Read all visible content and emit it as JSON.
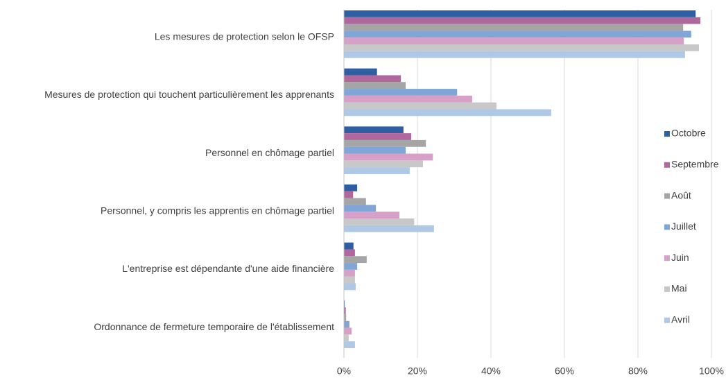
{
  "chart_data": {
    "type": "barh",
    "categories": [
      "Les mesures de protection selon le OFSP",
      "Mesures de protection qui touchent particulièrement les apprenants",
      "Personnel en chômage partiel",
      "Personnel, y compris les apprentis en chômage partiel",
      "L'entreprise est dépendante d'une aide financière",
      "Ordonnance de fermeture temporaire de l'établissement"
    ],
    "series": [
      {
        "name": "Octobre",
        "color": "#2e5fa3",
        "values": [
          95.7,
          9,
          16.2,
          3.6,
          2.6,
          0.2
        ]
      },
      {
        "name": "Septembre",
        "color": "#b0679e",
        "values": [
          97,
          15.5,
          18.3,
          2.5,
          3,
          0.5
        ]
      },
      {
        "name": "Août",
        "color": "#a5a5a5",
        "values": [
          92.3,
          16.8,
          22.3,
          6,
          6.2,
          0.6
        ]
      },
      {
        "name": "Juillet",
        "color": "#7fa6d6",
        "values": [
          94.5,
          30.8,
          16.8,
          8.7,
          3.6,
          1.5
        ]
      },
      {
        "name": "Juin",
        "color": "#d6a0c8",
        "values": [
          92.5,
          34.9,
          24.2,
          15.1,
          3,
          2.1
        ]
      },
      {
        "name": "Mai",
        "color": "#c8c8c8",
        "values": [
          96.6,
          41.5,
          21.5,
          19.1,
          3,
          1.3
        ]
      },
      {
        "name": "Avril",
        "color": "#aec8e6",
        "values": [
          92.8,
          56.4,
          17.9,
          24.5,
          3.2,
          3
        ]
      }
    ],
    "xlim": [
      0,
      100
    ],
    "xticks": [
      {
        "value": 0,
        "label": "0%"
      },
      {
        "value": 20,
        "label": "20%"
      },
      {
        "value": 40,
        "label": "40%"
      },
      {
        "value": 60,
        "label": "60%"
      },
      {
        "value": 80,
        "label": "80%"
      },
      {
        "value": 100,
        "label": "100%"
      }
    ],
    "grid": true,
    "legend": "right"
  }
}
